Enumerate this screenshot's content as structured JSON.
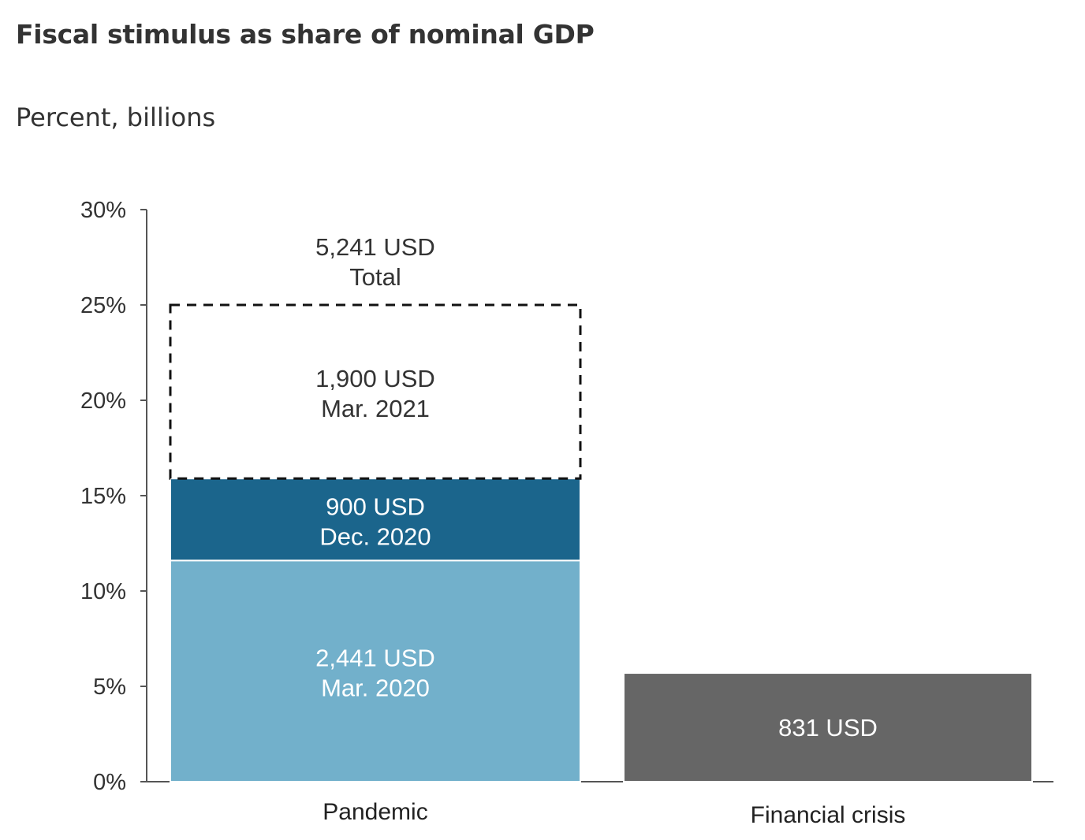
{
  "title": "Fiscal stimulus as share of nominal GDP",
  "subtitle": "Percent, billions",
  "chart_data": {
    "type": "bar",
    "stacked": true,
    "ylim": [
      0,
      30
    ],
    "yticks": [
      "0%",
      "5%",
      "10%",
      "15%",
      "20%",
      "25%",
      "30%"
    ],
    "categories": [
      "Pandemic",
      "Financial crisis"
    ],
    "bars": [
      {
        "category": "Pandemic",
        "segments": [
          {
            "value": 11.6,
            "label_line1": "2,441 USD",
            "label_line2": "Mar. 2020",
            "color": "#72b0cb",
            "text_color": "#ffffff",
            "style": "solid"
          },
          {
            "value": 4.3,
            "label_line1": "900 USD",
            "label_line2": "Dec. 2020",
            "color": "#1b658c",
            "text_color": "#ffffff",
            "style": "solid"
          },
          {
            "value": 9.1,
            "label_line1": "1,900 USD",
            "label_line2": "Mar. 2021",
            "color": "#ffffff",
            "text_color": "#333333",
            "style": "dashed"
          }
        ],
        "total_label_line1": "5,241 USD",
        "total_label_line2": "Total",
        "total_value": 25.0
      },
      {
        "category": "Financial crisis",
        "segments": [
          {
            "value": 5.7,
            "label_line1": "831 USD",
            "label_line2": "",
            "color": "#666666",
            "text_color": "#ffffff",
            "style": "solid"
          }
        ]
      }
    ]
  }
}
